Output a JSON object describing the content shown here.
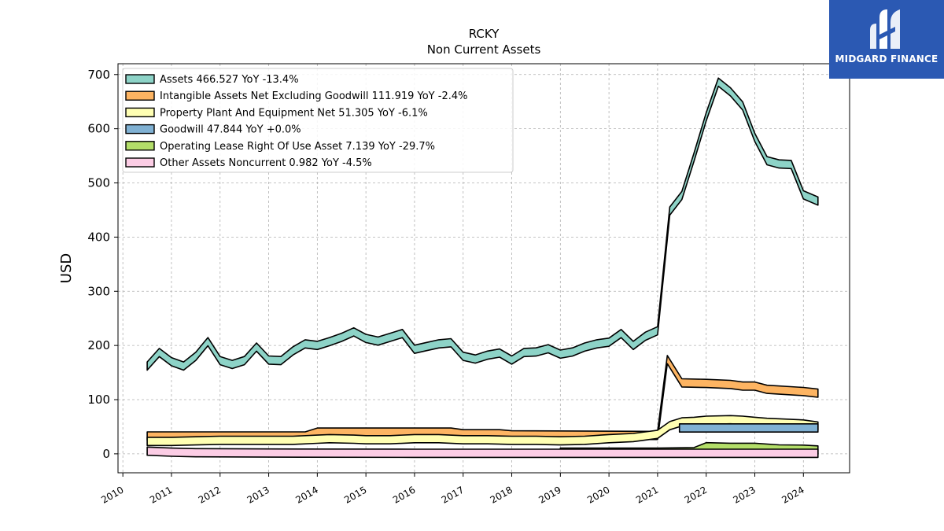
{
  "brand": {
    "name": "MIDGARD FINANCE",
    "color": "#2b59b3"
  },
  "chart_data": {
    "type": "area",
    "title": "RCKY",
    "subtitle": "Non Current  Assets",
    "ylabel": "USD",
    "xlabel": "",
    "xlim": [
      2009.9,
      2024.95
    ],
    "ylim": [
      -35,
      720
    ],
    "yticks": [
      0,
      100,
      200,
      300,
      400,
      500,
      600,
      700
    ],
    "xticks": [
      2010,
      2011,
      2012,
      2013,
      2014,
      2015,
      2016,
      2017,
      2018,
      2019,
      2020,
      2021,
      2022,
      2023,
      2024
    ],
    "grid": true,
    "legend_position": "top-left",
    "series": [
      {
        "name": "Assets",
        "legend": "Assets  466.527 YoY -13.4%",
        "color": "#8dd3c7",
        "points": [
          [
            2010.5,
            162
          ],
          [
            2010.75,
            187
          ],
          [
            2011.0,
            170
          ],
          [
            2011.25,
            162
          ],
          [
            2011.5,
            180
          ],
          [
            2011.75,
            207
          ],
          [
            2012.0,
            172
          ],
          [
            2012.25,
            165
          ],
          [
            2012.5,
            172
          ],
          [
            2012.75,
            197
          ],
          [
            2013.0,
            173
          ],
          [
            2013.25,
            172
          ],
          [
            2013.5,
            190
          ],
          [
            2013.75,
            203
          ],
          [
            2014.0,
            200
          ],
          [
            2014.25,
            207
          ],
          [
            2014.5,
            215
          ],
          [
            2014.75,
            225
          ],
          [
            2015.0,
            213
          ],
          [
            2015.25,
            208
          ],
          [
            2015.5,
            215
          ],
          [
            2015.75,
            222
          ],
          [
            2016.0,
            193
          ],
          [
            2016.25,
            198
          ],
          [
            2016.5,
            203
          ],
          [
            2016.75,
            205
          ],
          [
            2017.0,
            180
          ],
          [
            2017.25,
            175
          ],
          [
            2017.5,
            182
          ],
          [
            2017.75,
            186
          ],
          [
            2018.0,
            173
          ],
          [
            2018.25,
            187
          ],
          [
            2018.5,
            188
          ],
          [
            2018.75,
            194
          ],
          [
            2019.0,
            184
          ],
          [
            2019.25,
            188
          ],
          [
            2019.5,
            197
          ],
          [
            2019.75,
            203
          ],
          [
            2020.0,
            206
          ],
          [
            2020.25,
            222
          ],
          [
            2020.5,
            200
          ],
          [
            2020.75,
            217
          ],
          [
            2021.0,
            227
          ],
          [
            2021.25,
            448
          ],
          [
            2021.5,
            477
          ],
          [
            2021.75,
            548
          ],
          [
            2022.0,
            622
          ],
          [
            2022.25,
            686
          ],
          [
            2022.5,
            668
          ],
          [
            2022.75,
            642
          ],
          [
            2023.0,
            584
          ],
          [
            2023.25,
            541
          ],
          [
            2023.5,
            535
          ],
          [
            2023.75,
            534
          ],
          [
            2024.0,
            478
          ],
          [
            2024.3,
            466.5
          ]
        ]
      },
      {
        "name": "Intangible Assets Net Excluding Goodwill",
        "legend": "Intangible Assets Net Excluding Goodwill  111.919 YoY -2.4%",
        "color": "#fdb462",
        "points": [
          [
            2010.5,
            33
          ],
          [
            2013.75,
            33
          ],
          [
            2014.0,
            40
          ],
          [
            2016.75,
            40
          ],
          [
            2017.0,
            37
          ],
          [
            2017.75,
            37
          ],
          [
            2018.0,
            35
          ],
          [
            2020.75,
            34
          ],
          [
            2021.0,
            34
          ],
          [
            2021.2,
            174
          ],
          [
            2021.5,
            131
          ],
          [
            2022.0,
            130
          ],
          [
            2022.5,
            128
          ],
          [
            2022.75,
            125
          ],
          [
            2023.0,
            125
          ],
          [
            2023.25,
            119
          ],
          [
            2024.0,
            115
          ],
          [
            2024.3,
            112
          ]
        ]
      },
      {
        "name": "Property Plant And Equipment Net",
        "legend": "Property Plant And Equipment Net  51.305 YoY -6.1%",
        "color": "#ffffb3",
        "points": [
          [
            2010.5,
            23
          ],
          [
            2011.0,
            23
          ],
          [
            2011.5,
            24
          ],
          [
            2012.0,
            25
          ],
          [
            2013.0,
            25
          ],
          [
            2013.5,
            25
          ],
          [
            2014.0,
            27
          ],
          [
            2014.25,
            28
          ],
          [
            2014.75,
            27
          ],
          [
            2015.0,
            26
          ],
          [
            2015.5,
            26
          ],
          [
            2016.0,
            28
          ],
          [
            2016.5,
            28
          ],
          [
            2017.0,
            26
          ],
          [
            2017.5,
            26
          ],
          [
            2018.0,
            25
          ],
          [
            2018.5,
            25
          ],
          [
            2019.0,
            24
          ],
          [
            2019.5,
            25
          ],
          [
            2020.0,
            28
          ],
          [
            2020.5,
            30
          ],
          [
            2021.0,
            36
          ],
          [
            2021.25,
            52
          ],
          [
            2021.5,
            59
          ],
          [
            2021.75,
            60
          ],
          [
            2022.0,
            62
          ],
          [
            2022.5,
            63
          ],
          [
            2022.75,
            62
          ],
          [
            2023.0,
            60
          ],
          [
            2023.25,
            58
          ],
          [
            2023.75,
            56
          ],
          [
            2024.0,
            55
          ],
          [
            2024.3,
            51.3
          ]
        ]
      },
      {
        "name": "Goodwill",
        "legend": "Goodwill  47.844 YoY +0.0%",
        "color": "#80b1d3",
        "points": [
          [
            2021.45,
            47.8
          ],
          [
            2022.0,
            47.8
          ],
          [
            2023.0,
            47.8
          ],
          [
            2024.3,
            47.8
          ]
        ]
      },
      {
        "name": "Operating Lease Right Of Use Asset",
        "legend": "Operating Lease Right Of Use Asset  7.139 YoY -29.7%",
        "color": "#b3de69",
        "points": [
          [
            2019.0,
            3
          ],
          [
            2020.0,
            3
          ],
          [
            2021.0,
            3
          ],
          [
            2021.75,
            4
          ],
          [
            2022.0,
            13
          ],
          [
            2022.5,
            12
          ],
          [
            2023.0,
            12
          ],
          [
            2023.5,
            9
          ],
          [
            2024.0,
            8.5
          ],
          [
            2024.3,
            7.1
          ]
        ]
      },
      {
        "name": "Other Assets Noncurrent",
        "legend": "Other Assets Noncurrent  0.982 YoY -4.5%",
        "color": "#fccde5",
        "points": [
          [
            2010.5,
            5
          ],
          [
            2011.0,
            3
          ],
          [
            2011.5,
            2
          ],
          [
            2013.0,
            1.5
          ],
          [
            2016.0,
            1
          ],
          [
            2020.0,
            1
          ],
          [
            2022.0,
            1
          ],
          [
            2024.3,
            0.98
          ]
        ]
      }
    ]
  }
}
